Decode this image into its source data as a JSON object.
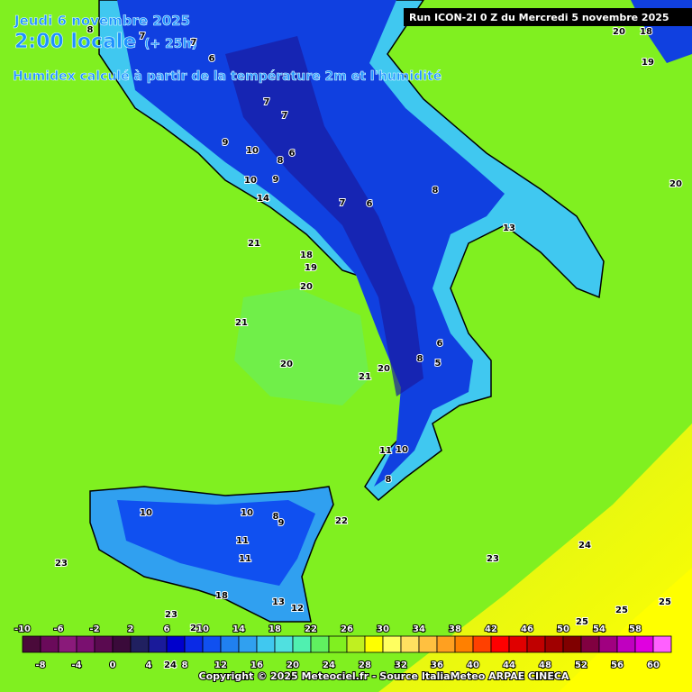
{
  "header": {
    "date": "Jeudi 6 novembre 2025",
    "time": "2:00 locale",
    "lead": "(+ 25h)",
    "subtitle": "Humidex calculé à partir de la température 2m et l'humidité",
    "run": "Run ICON-2I 0 Z du Mercredi 5 novembre 2025"
  },
  "map_labels": [
    8,
    7,
    7,
    6,
    7,
    7,
    10,
    8,
    6,
    9,
    10,
    9,
    14,
    7,
    6,
    8,
    13,
    21,
    18,
    19,
    20,
    21,
    20,
    21,
    20,
    6,
    8,
    5,
    11,
    10,
    8,
    10,
    10,
    8,
    9,
    22,
    11,
    11,
    23,
    23,
    24,
    18,
    13,
    12,
    23,
    21,
    25,
    25,
    25,
    20,
    18,
    19,
    20,
    24
  ],
  "colorbar": {
    "levels": [
      -10,
      -8,
      -6,
      -4,
      -2,
      0,
      2,
      4,
      6,
      8,
      10,
      12,
      14,
      16,
      18,
      20,
      22,
      24,
      26,
      28,
      30,
      32,
      34,
      36,
      38,
      40,
      42,
      44,
      46,
      48,
      50,
      52,
      54,
      56,
      58,
      60
    ],
    "colors": [
      "#4a0a3a",
      "#6a0a5a",
      "#8a1a7a",
      "#7a1070",
      "#5a0a50",
      "#3a0a3a",
      "#202060",
      "#1a1a9a",
      "#0000cc",
      "#0a2ae6",
      "#1050f0",
      "#2080f0",
      "#30a0f0",
      "#40c8f0",
      "#50e0e0",
      "#50f0b0",
      "#60f060",
      "#80f020",
      "#c0f020",
      "#ffff00",
      "#ffff60",
      "#ffe060",
      "#ffc040",
      "#ffa020",
      "#ff8000",
      "#ff4000",
      "#ff0000",
      "#e00000",
      "#c00000",
      "#a00000",
      "#800000",
      "#800040",
      "#a00080",
      "#c000c0",
      "#e000e0",
      "#ff60ff"
    ]
  },
  "footer": {
    "copyright": "Copyright © 2025 Meteociel.fr - Source ItaliaMeteo ARPAE CINECA"
  }
}
